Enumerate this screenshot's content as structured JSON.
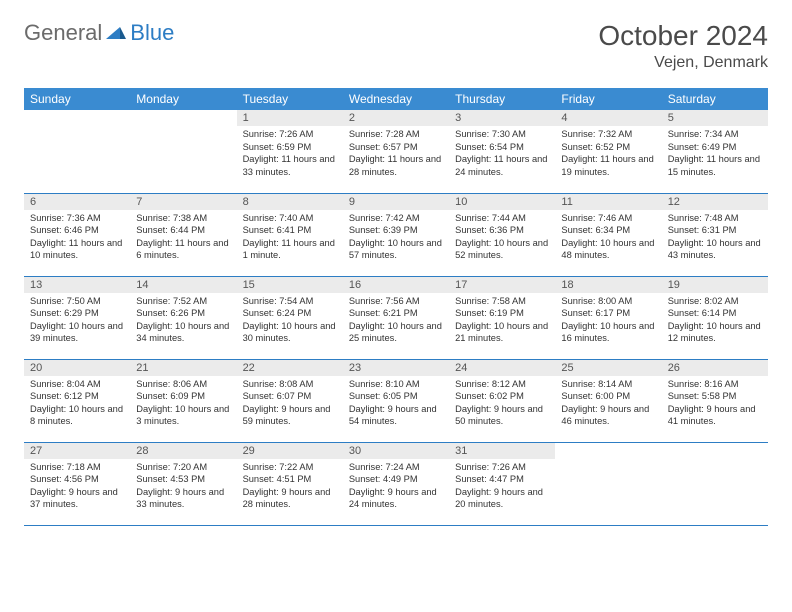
{
  "brand": {
    "part1": "General",
    "part2": "Blue"
  },
  "title": {
    "month": "October 2024",
    "location": "Vejen, Denmark"
  },
  "colors": {
    "header_bg": "#3a8bd1",
    "border": "#2d7dc4",
    "daynum_bg": "#ebebeb",
    "logo_gray": "#6b6b6b",
    "logo_blue": "#2d7dc4"
  },
  "fonts": {
    "title_size_pt": 21,
    "location_size_pt": 12,
    "header_cell_size_pt": 9,
    "body_size_pt": 7
  },
  "weekdays": [
    "Sunday",
    "Monday",
    "Tuesday",
    "Wednesday",
    "Thursday",
    "Friday",
    "Saturday"
  ],
  "weeks": [
    [
      null,
      null,
      {
        "n": "1",
        "sr": "Sunrise: 7:26 AM",
        "ss": "Sunset: 6:59 PM",
        "dl": "Daylight: 11 hours and 33 minutes."
      },
      {
        "n": "2",
        "sr": "Sunrise: 7:28 AM",
        "ss": "Sunset: 6:57 PM",
        "dl": "Daylight: 11 hours and 28 minutes."
      },
      {
        "n": "3",
        "sr": "Sunrise: 7:30 AM",
        "ss": "Sunset: 6:54 PM",
        "dl": "Daylight: 11 hours and 24 minutes."
      },
      {
        "n": "4",
        "sr": "Sunrise: 7:32 AM",
        "ss": "Sunset: 6:52 PM",
        "dl": "Daylight: 11 hours and 19 minutes."
      },
      {
        "n": "5",
        "sr": "Sunrise: 7:34 AM",
        "ss": "Sunset: 6:49 PM",
        "dl": "Daylight: 11 hours and 15 minutes."
      }
    ],
    [
      {
        "n": "6",
        "sr": "Sunrise: 7:36 AM",
        "ss": "Sunset: 6:46 PM",
        "dl": "Daylight: 11 hours and 10 minutes."
      },
      {
        "n": "7",
        "sr": "Sunrise: 7:38 AM",
        "ss": "Sunset: 6:44 PM",
        "dl": "Daylight: 11 hours and 6 minutes."
      },
      {
        "n": "8",
        "sr": "Sunrise: 7:40 AM",
        "ss": "Sunset: 6:41 PM",
        "dl": "Daylight: 11 hours and 1 minute."
      },
      {
        "n": "9",
        "sr": "Sunrise: 7:42 AM",
        "ss": "Sunset: 6:39 PM",
        "dl": "Daylight: 10 hours and 57 minutes."
      },
      {
        "n": "10",
        "sr": "Sunrise: 7:44 AM",
        "ss": "Sunset: 6:36 PM",
        "dl": "Daylight: 10 hours and 52 minutes."
      },
      {
        "n": "11",
        "sr": "Sunrise: 7:46 AM",
        "ss": "Sunset: 6:34 PM",
        "dl": "Daylight: 10 hours and 48 minutes."
      },
      {
        "n": "12",
        "sr": "Sunrise: 7:48 AM",
        "ss": "Sunset: 6:31 PM",
        "dl": "Daylight: 10 hours and 43 minutes."
      }
    ],
    [
      {
        "n": "13",
        "sr": "Sunrise: 7:50 AM",
        "ss": "Sunset: 6:29 PM",
        "dl": "Daylight: 10 hours and 39 minutes."
      },
      {
        "n": "14",
        "sr": "Sunrise: 7:52 AM",
        "ss": "Sunset: 6:26 PM",
        "dl": "Daylight: 10 hours and 34 minutes."
      },
      {
        "n": "15",
        "sr": "Sunrise: 7:54 AM",
        "ss": "Sunset: 6:24 PM",
        "dl": "Daylight: 10 hours and 30 minutes."
      },
      {
        "n": "16",
        "sr": "Sunrise: 7:56 AM",
        "ss": "Sunset: 6:21 PM",
        "dl": "Daylight: 10 hours and 25 minutes."
      },
      {
        "n": "17",
        "sr": "Sunrise: 7:58 AM",
        "ss": "Sunset: 6:19 PM",
        "dl": "Daylight: 10 hours and 21 minutes."
      },
      {
        "n": "18",
        "sr": "Sunrise: 8:00 AM",
        "ss": "Sunset: 6:17 PM",
        "dl": "Daylight: 10 hours and 16 minutes."
      },
      {
        "n": "19",
        "sr": "Sunrise: 8:02 AM",
        "ss": "Sunset: 6:14 PM",
        "dl": "Daylight: 10 hours and 12 minutes."
      }
    ],
    [
      {
        "n": "20",
        "sr": "Sunrise: 8:04 AM",
        "ss": "Sunset: 6:12 PM",
        "dl": "Daylight: 10 hours and 8 minutes."
      },
      {
        "n": "21",
        "sr": "Sunrise: 8:06 AM",
        "ss": "Sunset: 6:09 PM",
        "dl": "Daylight: 10 hours and 3 minutes."
      },
      {
        "n": "22",
        "sr": "Sunrise: 8:08 AM",
        "ss": "Sunset: 6:07 PM",
        "dl": "Daylight: 9 hours and 59 minutes."
      },
      {
        "n": "23",
        "sr": "Sunrise: 8:10 AM",
        "ss": "Sunset: 6:05 PM",
        "dl": "Daylight: 9 hours and 54 minutes."
      },
      {
        "n": "24",
        "sr": "Sunrise: 8:12 AM",
        "ss": "Sunset: 6:02 PM",
        "dl": "Daylight: 9 hours and 50 minutes."
      },
      {
        "n": "25",
        "sr": "Sunrise: 8:14 AM",
        "ss": "Sunset: 6:00 PM",
        "dl": "Daylight: 9 hours and 46 minutes."
      },
      {
        "n": "26",
        "sr": "Sunrise: 8:16 AM",
        "ss": "Sunset: 5:58 PM",
        "dl": "Daylight: 9 hours and 41 minutes."
      }
    ],
    [
      {
        "n": "27",
        "sr": "Sunrise: 7:18 AM",
        "ss": "Sunset: 4:56 PM",
        "dl": "Daylight: 9 hours and 37 minutes."
      },
      {
        "n": "28",
        "sr": "Sunrise: 7:20 AM",
        "ss": "Sunset: 4:53 PM",
        "dl": "Daylight: 9 hours and 33 minutes."
      },
      {
        "n": "29",
        "sr": "Sunrise: 7:22 AM",
        "ss": "Sunset: 4:51 PM",
        "dl": "Daylight: 9 hours and 28 minutes."
      },
      {
        "n": "30",
        "sr": "Sunrise: 7:24 AM",
        "ss": "Sunset: 4:49 PM",
        "dl": "Daylight: 9 hours and 24 minutes."
      },
      {
        "n": "31",
        "sr": "Sunrise: 7:26 AM",
        "ss": "Sunset: 4:47 PM",
        "dl": "Daylight: 9 hours and 20 minutes."
      },
      null,
      null
    ]
  ]
}
